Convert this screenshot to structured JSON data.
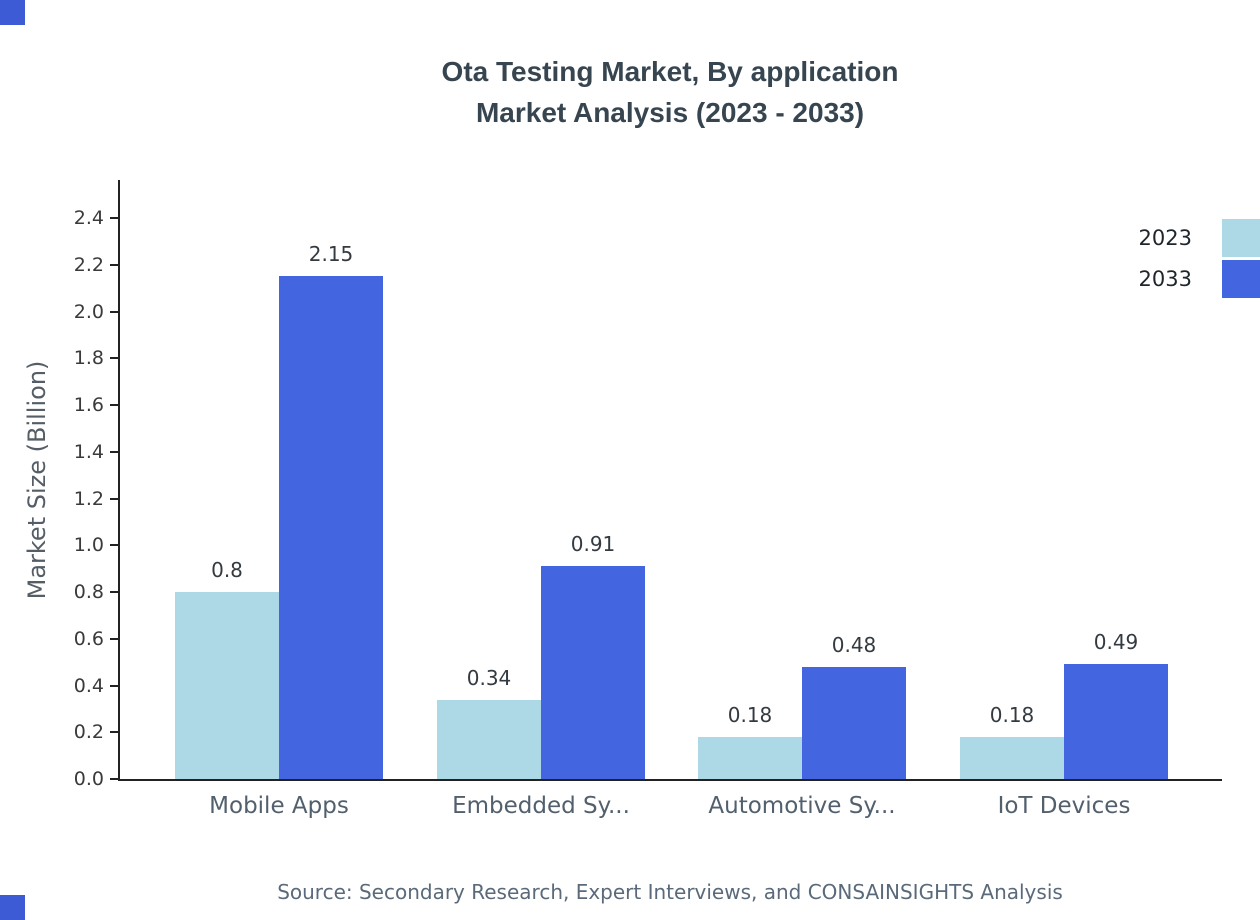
{
  "title": {
    "line1": "Ota Testing Market, By application",
    "line2": "Market Analysis (2023 - 2033)"
  },
  "source": "Source: Secondary Research, Expert Interviews, and CONSAINSIGHTS Analysis",
  "accent": {
    "corner_color": "#3d5bd4"
  },
  "chart_data": {
    "type": "bar",
    "categories": [
      "Mobile Apps",
      "Embedded Sy...",
      "Automotive Sy...",
      "IoT Devices"
    ],
    "series": [
      {
        "name": "2023",
        "color": "#add8e6",
        "values": [
          0.8,
          0.34,
          0.18,
          0.18
        ]
      },
      {
        "name": "2033",
        "color": "#4365e0",
        "values": [
          2.15,
          0.91,
          0.48,
          0.49
        ]
      }
    ],
    "title": "Ota Testing Market, By application Market Analysis (2023 - 2033)",
    "xlabel": "",
    "ylabel": "Market Size (Billion)",
    "ylim": [
      0,
      2.5
    ],
    "ytick_step": 0.2,
    "ytick_max": 2.4,
    "grid": false,
    "legend_position": "top-right",
    "value_labels": true
  }
}
